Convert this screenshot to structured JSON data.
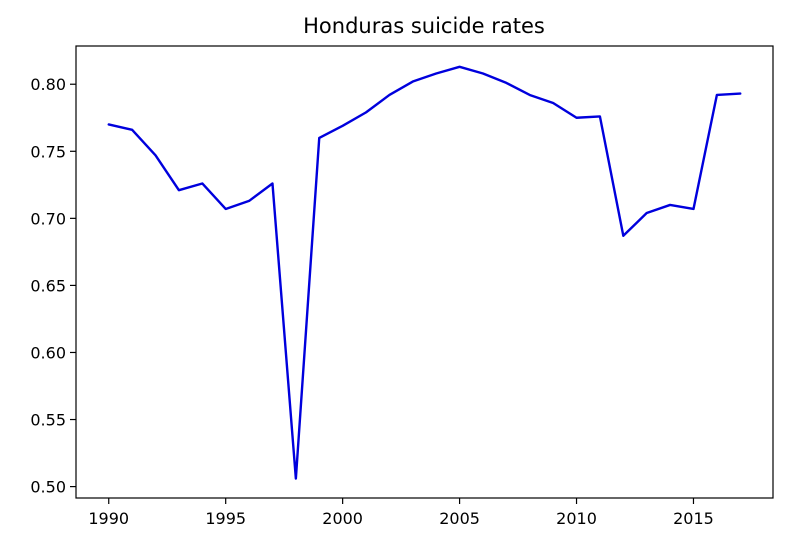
{
  "chart_data": {
    "type": "line",
    "title": "Honduras suicide rates",
    "xlabel": "",
    "ylabel": "",
    "xlim": [
      1988.6,
      2018.4
    ],
    "ylim": [
      0.4915,
      0.8285
    ],
    "x_ticks": [
      1990,
      1995,
      2000,
      2005,
      2010,
      2015
    ],
    "y_ticks": [
      0.5,
      0.55,
      0.6,
      0.65,
      0.7,
      0.75,
      0.8
    ],
    "grid": false,
    "legend": "none",
    "series": [
      {
        "color": "#0000dd",
        "x": [
          1990,
          1991,
          1992,
          1993,
          1994,
          1995,
          1996,
          1997,
          1998,
          1999,
          2000,
          2001,
          2002,
          2003,
          2004,
          2005,
          2006,
          2007,
          2008,
          2009,
          2010,
          2011,
          2012,
          2013,
          2014,
          2015,
          2016,
          2017
        ],
        "values": [
          0.77,
          0.766,
          0.747,
          0.721,
          0.726,
          0.707,
          0.713,
          0.726,
          0.506,
          0.76,
          0.769,
          0.779,
          0.792,
          0.802,
          0.808,
          0.813,
          0.808,
          0.801,
          0.792,
          0.786,
          0.775,
          0.776,
          0.687,
          0.704,
          0.71,
          0.707,
          0.792,
          0.793
        ]
      }
    ]
  }
}
